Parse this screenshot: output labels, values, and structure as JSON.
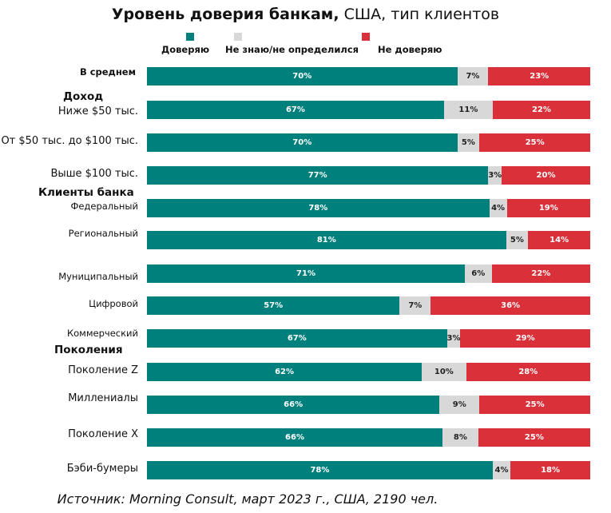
{
  "chart_data": {
    "type": "bar",
    "orientation": "horizontal",
    "stacked": "100%",
    "title_bold": "Уровень доверия банкам,",
    "title_rest": " США, тип клиентов",
    "legend": [
      {
        "name": "Доверяю",
        "color": "#00807d"
      },
      {
        "name": "Не знаю/не определился",
        "color": "#d8d8d8"
      },
      {
        "name": "Не доверяю",
        "color": "#d9303a"
      }
    ],
    "legend_placement": "top",
    "groups": [
      {
        "label": "",
        "rows": [
          0
        ]
      },
      {
        "label": "Доход",
        "rows": [
          1,
          2,
          3
        ]
      },
      {
        "label": "Клиенты банка",
        "rows": [
          4,
          5,
          6,
          7,
          8
        ]
      },
      {
        "label": "Поколения",
        "rows": [
          9,
          10,
          11,
          12
        ]
      }
    ],
    "categories": [
      "В среднем",
      "Ниже $50 тыс.",
      "От $50 тыс. до $100 тыс.",
      "Выше $100 тыс.",
      "Федеральный",
      "Региональный",
      "Муниципальный",
      "Цифровой",
      "Коммерческий",
      "Поколение Z",
      "Миллениалы",
      "Поколение X",
      "Бэби-бумеры"
    ],
    "series": [
      {
        "name": "Доверяю",
        "values": [
          70,
          67,
          70,
          77,
          78,
          81,
          71,
          57,
          67,
          62,
          66,
          66,
          78
        ]
      },
      {
        "name": "Не знаю/не определился",
        "values": [
          7,
          11,
          5,
          3,
          4,
          5,
          6,
          7,
          3,
          10,
          9,
          8,
          4
        ]
      },
      {
        "name": "Не доверяю",
        "values": [
          23,
          22,
          25,
          20,
          19,
          14,
          22,
          36,
          29,
          28,
          25,
          25,
          18
        ]
      }
    ],
    "value_suffix": "%",
    "xlim": [
      0,
      100
    ],
    "grid": false,
    "source": "Источник: Morning Consult, март 2023 г., США, 2190 чел."
  }
}
